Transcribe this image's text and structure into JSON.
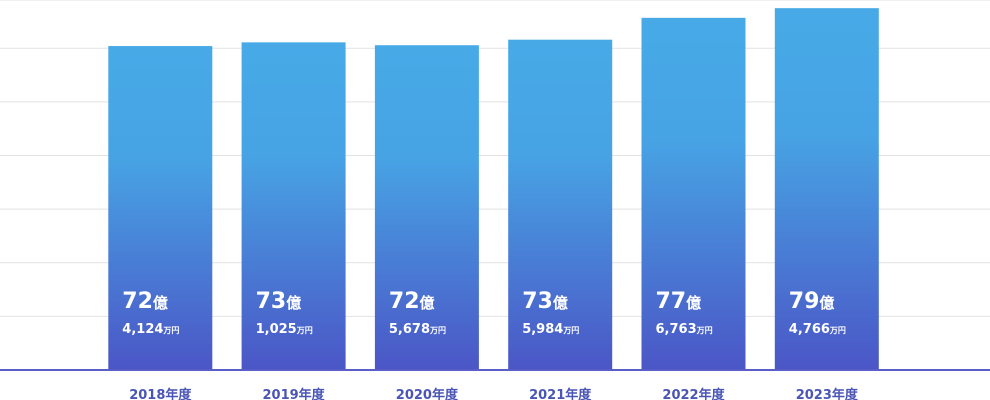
{
  "chart_data": {
    "type": "bar",
    "categories": [
      "2018年度",
      "2019年度",
      "2020年度",
      "2021年度",
      "2022年度",
      "2023年度"
    ],
    "values": [
      724124,
      731025,
      725678,
      735984,
      776763,
      794766
    ],
    "value_labels": [
      "72億4,124万円",
      "73億1,025万円",
      "72億5,678万円",
      "73億5,984万円",
      "77億6,763万円",
      "79億4,766万円"
    ],
    "color": "#4aa9e6",
    "ylim": [
      120000,
      810000
    ],
    "yticks": [
      220000,
      320000,
      420000,
      520000,
      620000,
      720000,
      810000
    ],
    "grid": true
  }
}
